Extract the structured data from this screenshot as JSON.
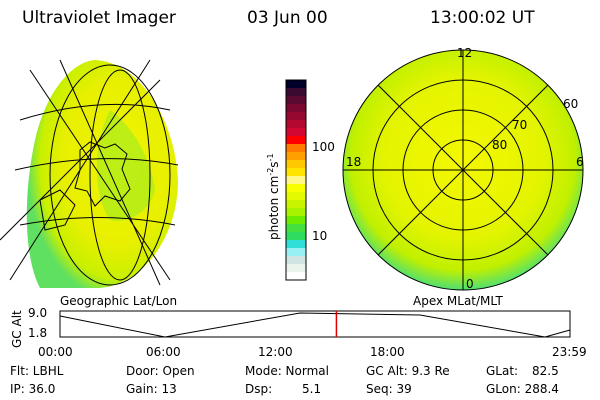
{
  "header": {
    "title": "Ultraviolet Imager",
    "date": "03 Jun 00",
    "time": "13:00:02 UT"
  },
  "colorbar": {
    "label": "photon cm",
    "exp1": "-2",
    "s": "s",
    "exp2": "-1",
    "ticks": [
      "100",
      "10"
    ],
    "colors": [
      "#00002a",
      "#3a0a30",
      "#5a0a30",
      "#7a0830",
      "#960830",
      "#b40830",
      "#d20830",
      "#ff0000",
      "#ff7a00",
      "#ffa000",
      "#ffc800",
      "#ffe400",
      "#fff888",
      "#f8ff00",
      "#e4fa00",
      "#c8f400",
      "#a8f400",
      "#6cec00",
      "#44e040",
      "#30dc60",
      "#30e0d8",
      "#98f0f4",
      "#d0e4e4",
      "#e8f4ec",
      "#ffffff"
    ]
  },
  "left_panel": {
    "label": "Geographic Lat/Lon"
  },
  "right_panel": {
    "label": "Apex MLat/MLT",
    "mlt": [
      "12",
      "6",
      "0",
      "18"
    ],
    "mlat": [
      "80",
      "70",
      "60"
    ]
  },
  "altitude_plot": {
    "ylabel": "GC Alt",
    "yticks": [
      "9.0",
      "1.8"
    ],
    "xticks": [
      "00:00",
      "06:00",
      "12:00",
      "18:00",
      "23:59"
    ],
    "current_time_fraction": 0.542
  },
  "info": {
    "flt": "Flt: LBHL",
    "ip": "IP: 36.0",
    "door": "Door: Open",
    "gain": "Gain: 13",
    "mode": "Mode: Normal",
    "dsp_label": "Dsp:",
    "dsp_value": "5.1",
    "gcalt": "GC Alt: 9.3 Re",
    "seq": "Seq: 39",
    "glat_label": "GLat:",
    "glat_value": "82.5",
    "glon": "GLon: 288.4"
  }
}
